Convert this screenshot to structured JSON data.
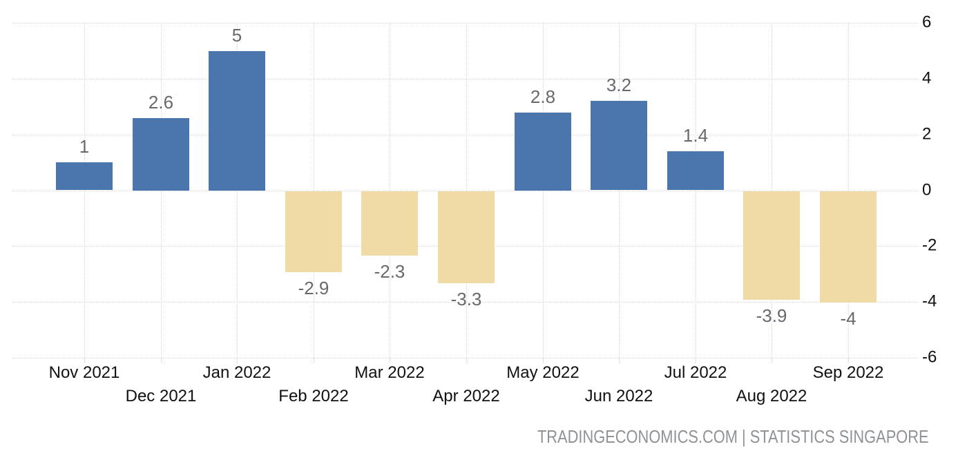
{
  "chart_data": {
    "type": "bar",
    "title": "",
    "xlabel": "",
    "ylabel": "",
    "categories": [
      "Nov 2021",
      "Dec 2021",
      "Jan 2022",
      "Feb 2022",
      "Mar 2022",
      "Apr 2022",
      "May 2022",
      "Jun 2022",
      "Jul 2022",
      "Aug 2022",
      "Sep 2022"
    ],
    "values": [
      1,
      2.6,
      5,
      -2.9,
      -2.3,
      -3.3,
      2.8,
      3.2,
      1.4,
      -3.9,
      -4
    ],
    "value_labels": [
      "1",
      "2.6",
      "5",
      "-2.9",
      "-2.3",
      "-3.3",
      "2.8",
      "3.2",
      "1.4",
      "-3.9",
      "-4"
    ],
    "y_ticks": [
      6,
      4,
      2,
      0,
      -2,
      -4,
      -6
    ],
    "y_tick_labels": [
      "6",
      "4",
      "2",
      "0",
      "-2",
      "-4",
      "-6"
    ],
    "ylim": [
      -6,
      6
    ],
    "y_axis_side": "right",
    "grid": "dotted-both-axes",
    "legend": "none",
    "colors": {
      "positive_bar": "#4A75AD",
      "negative_bar": "#F0DAA6",
      "value_label": "#67696E",
      "axis_label": "#111111",
      "gridline": "#D6D6D6",
      "footer_text": "#8F9296",
      "background": "#FFFFFF"
    }
  },
  "footer": {
    "text": "TRADINGECONOMICS.COM | STATISTICS SINGAPORE"
  }
}
